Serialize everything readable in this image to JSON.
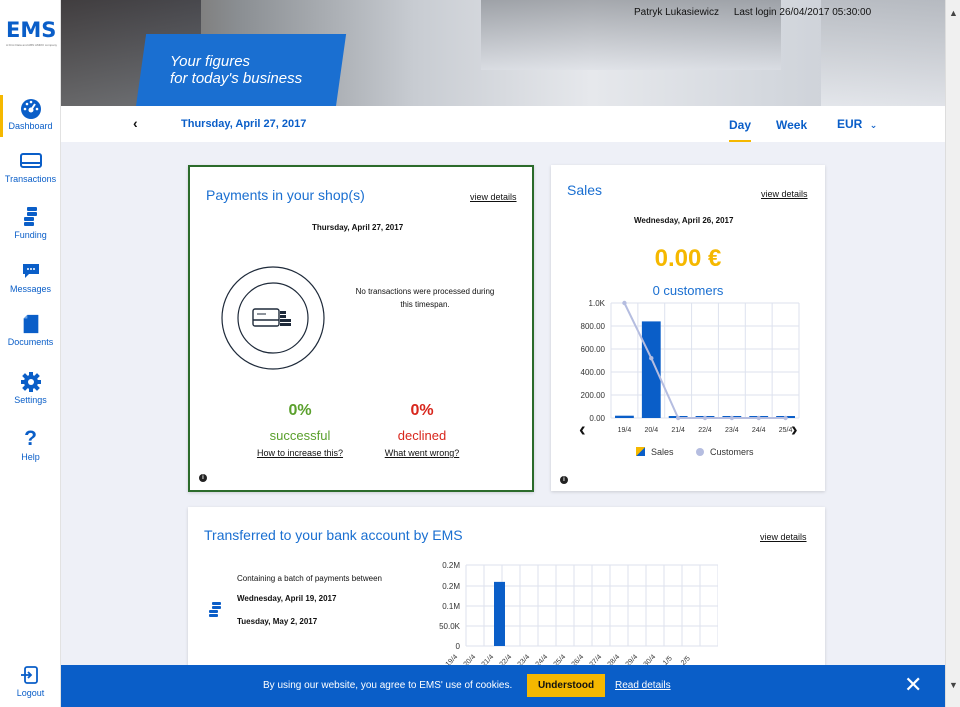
{
  "brand": {
    "logo": "EMS",
    "logo_tagline": "A First Data and ABN AMRO company"
  },
  "header": {
    "tagline_line1": "Your figures",
    "tagline_line2": "for today's business",
    "user_name": "Patryk Lukasiewicz",
    "last_login": "Last login 26/04/2017 05:30:00"
  },
  "sidebar": {
    "items": [
      {
        "label": "Dashboard",
        "icon": "dashboard-icon"
      },
      {
        "label": "Transactions",
        "icon": "card-icon"
      },
      {
        "label": "Funding",
        "icon": "coins-icon"
      },
      {
        "label": "Messages",
        "icon": "message-icon"
      },
      {
        "label": "Documents",
        "icon": "document-icon"
      },
      {
        "label": "Settings",
        "icon": "gear-icon"
      },
      {
        "label": "Help",
        "icon": "question-icon"
      }
    ],
    "logout": "Logout"
  },
  "datebar": {
    "date": "Thursday, April 27, 2017",
    "day": "Day",
    "week": "Week",
    "currency": "EUR"
  },
  "payments": {
    "title": "Payments in your shop(s)",
    "view_details": "view details",
    "date": "Thursday, April 27, 2017",
    "no_tx": "No transactions were processed during this timespan.",
    "success_pct": "0%",
    "success_label": "successful",
    "success_link": "How to increase this?",
    "declined_pct": "0%",
    "declined_label": "declined",
    "declined_link": "What went wrong?",
    "colors": {
      "success": "#5aa02c",
      "declined": "#d8261c"
    }
  },
  "sales": {
    "title": "Sales",
    "view_details": "view details",
    "date": "Wednesday, April 26, 2017",
    "amount": "0.00 €",
    "customers": "0 customers",
    "legend_sales": "Sales",
    "legend_customers": "Customers"
  },
  "transfer": {
    "title": "Transferred to your bank account by EMS",
    "view_details": "view details",
    "batch_text": "Containing a batch of payments between",
    "date_from": "Wednesday, April 19, 2017",
    "date_to": "Tuesday, May 2, 2017"
  },
  "cookie": {
    "text": "By using our website, you agree to EMS' use of cookies.",
    "button": "Understood",
    "link": "Read details"
  },
  "chart_data": [
    {
      "type": "bar",
      "categories": [
        "19/4",
        "20/4",
        "21/4",
        "22/4",
        "23/4",
        "24/4",
        "25/4"
      ],
      "series": [
        {
          "name": "Sales",
          "type": "bar",
          "values": [
            20,
            840,
            0,
            0,
            0,
            0,
            0
          ]
        },
        {
          "name": "Customers",
          "type": "line",
          "values": [
            1000,
            520,
            0,
            0,
            0,
            0,
            0
          ]
        }
      ],
      "y_ticks": [
        "0.00",
        "200.00",
        "400.00",
        "600.00",
        "800.00",
        "1.0K"
      ],
      "ylim": [
        0,
        1000
      ],
      "grid": true,
      "legend": "bottom",
      "colors": {
        "bar": "#0a5ec8",
        "line": "#b5bde0"
      }
    },
    {
      "type": "bar",
      "categories": [
        "19/4",
        "20/4",
        "21/4",
        "22/4",
        "23/4",
        "24/4",
        "25/4",
        "26/4",
        "27/4",
        "28/4",
        "29/4",
        "30/4",
        "1/5",
        "2/5"
      ],
      "series": [
        {
          "name": "",
          "values": [
            0,
            0,
            0,
            0.19,
            0,
            0,
            0,
            0,
            0,
            0,
            0,
            0,
            0,
            0
          ]
        }
      ],
      "y_ticks": [
        "0",
        "50.0K",
        "0.1M",
        "0.2M",
        "0.2M"
      ],
      "ylim": [
        0,
        0.24
      ],
      "grid": true,
      "colors": {
        "bar": "#0a5ec8"
      }
    }
  ]
}
